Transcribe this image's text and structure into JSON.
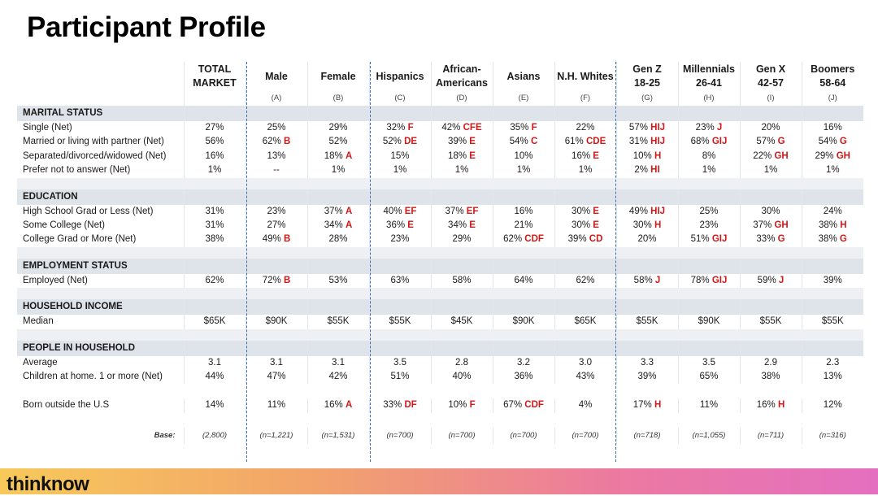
{
  "title": "Participant Profile",
  "columns": [
    {
      "name": "TOTAL\nMARKET",
      "letter": ""
    },
    {
      "name": "Male",
      "letter": "(A)"
    },
    {
      "name": "Female",
      "letter": "(B)"
    },
    {
      "name": "Hispanics",
      "letter": "(C)"
    },
    {
      "name": "African-\nAmericans",
      "letter": "(D)"
    },
    {
      "name": "Asians",
      "letter": "(E)"
    },
    {
      "name": "N.H. Whites",
      "letter": "(F)"
    },
    {
      "name": "Gen Z\n18-25",
      "letter": "(G)"
    },
    {
      "name": "Millennials\n26-41",
      "letter": "(H)"
    },
    {
      "name": "Gen X\n42-57",
      "letter": "(I)"
    },
    {
      "name": "Boomers\n58-64",
      "letter": "(J)"
    }
  ],
  "sections": [
    {
      "title": "MARITAL STATUS",
      "rows": [
        {
          "label": "Single (Net)",
          "cells": [
            [
              "27%",
              ""
            ],
            [
              "25%",
              ""
            ],
            [
              "29%",
              ""
            ],
            [
              "32%",
              "F"
            ],
            [
              "42%",
              "CFE"
            ],
            [
              "35%",
              "F"
            ],
            [
              "22%",
              ""
            ],
            [
              "57%",
              "HIJ"
            ],
            [
              "23%",
              "J"
            ],
            [
              "20%",
              ""
            ],
            [
              "16%",
              ""
            ]
          ]
        },
        {
          "label": "Married or living with partner (Net)",
          "cells": [
            [
              "56%",
              ""
            ],
            [
              "62%",
              "B"
            ],
            [
              "52%",
              ""
            ],
            [
              "52%",
              "DE"
            ],
            [
              "39%",
              "E"
            ],
            [
              "54%",
              "C"
            ],
            [
              "61%",
              "CDE"
            ],
            [
              "31%",
              "HIJ"
            ],
            [
              "68%",
              "GIJ"
            ],
            [
              "57%",
              "G"
            ],
            [
              "54%",
              "G"
            ]
          ]
        },
        {
          "label": "Separated/divorced/widowed (Net)",
          "cells": [
            [
              "16%",
              ""
            ],
            [
              "13%",
              ""
            ],
            [
              "18%",
              "A"
            ],
            [
              "15%",
              ""
            ],
            [
              "18%",
              "E"
            ],
            [
              "10%",
              ""
            ],
            [
              "16%",
              "E"
            ],
            [
              "10%",
              "H"
            ],
            [
              "8%",
              ""
            ],
            [
              "22%",
              "GH"
            ],
            [
              "29%",
              "GH"
            ]
          ]
        },
        {
          "label": "Prefer not to answer (Net)",
          "cells": [
            [
              "1%",
              ""
            ],
            [
              "--",
              ""
            ],
            [
              "1%",
              ""
            ],
            [
              "1%",
              ""
            ],
            [
              "1%",
              ""
            ],
            [
              "1%",
              ""
            ],
            [
              "1%",
              ""
            ],
            [
              "2%",
              "HI"
            ],
            [
              "1%",
              ""
            ],
            [
              "1%",
              ""
            ],
            [
              "1%",
              ""
            ]
          ]
        }
      ]
    },
    {
      "title": "EDUCATION",
      "rows": [
        {
          "label": "High School Grad or Less (Net)",
          "cells": [
            [
              "31%",
              ""
            ],
            [
              "23%",
              ""
            ],
            [
              "37%",
              "A"
            ],
            [
              "40%",
              "EF"
            ],
            [
              "37%",
              "EF"
            ],
            [
              "16%",
              ""
            ],
            [
              "30%",
              "E"
            ],
            [
              "49%",
              "HIJ"
            ],
            [
              "25%",
              ""
            ],
            [
              "30%",
              ""
            ],
            [
              "24%",
              ""
            ]
          ]
        },
        {
          "label": "Some College (Net)",
          "cells": [
            [
              "31%",
              ""
            ],
            [
              "27%",
              ""
            ],
            [
              "34%",
              "A"
            ],
            [
              "36%",
              "E"
            ],
            [
              "34%",
              "E"
            ],
            [
              "21%",
              ""
            ],
            [
              "30%",
              "E"
            ],
            [
              "30%",
              "H"
            ],
            [
              "23%",
              ""
            ],
            [
              "37%",
              "GH"
            ],
            [
              "38%",
              "H"
            ]
          ]
        },
        {
          "label": "College Grad or More (Net)",
          "cells": [
            [
              "38%",
              ""
            ],
            [
              "49%",
              "B"
            ],
            [
              "28%",
              ""
            ],
            [
              "23%",
              ""
            ],
            [
              "29%",
              ""
            ],
            [
              "62%",
              "CDF"
            ],
            [
              "39%",
              "CD"
            ],
            [
              "20%",
              ""
            ],
            [
              "51%",
              "GIJ"
            ],
            [
              "33%",
              "G"
            ],
            [
              "38%",
              "G"
            ]
          ]
        }
      ]
    },
    {
      "title": "EMPLOYMENT STATUS",
      "rows": [
        {
          "label": "Employed (Net)",
          "cells": [
            [
              "62%",
              ""
            ],
            [
              "72%",
              "B"
            ],
            [
              "53%",
              ""
            ],
            [
              "63%",
              ""
            ],
            [
              "58%",
              ""
            ],
            [
              "64%",
              ""
            ],
            [
              "62%",
              ""
            ],
            [
              "58%",
              "J"
            ],
            [
              "78%",
              "GIJ"
            ],
            [
              "59%",
              "J"
            ],
            [
              "39%",
              ""
            ]
          ]
        }
      ]
    },
    {
      "title": "HOUSEHOLD INCOME",
      "rows": [
        {
          "label": "Median",
          "cells": [
            [
              "$65K",
              ""
            ],
            [
              "$90K",
              ""
            ],
            [
              "$55K",
              ""
            ],
            [
              "$55K",
              ""
            ],
            [
              "$45K",
              ""
            ],
            [
              "$90K",
              ""
            ],
            [
              "$65K",
              ""
            ],
            [
              "$55K",
              ""
            ],
            [
              "$90K",
              ""
            ],
            [
              "$55K",
              ""
            ],
            [
              "$55K",
              ""
            ]
          ]
        }
      ]
    },
    {
      "title": "PEOPLE IN HOUSEHOLD",
      "rows": [
        {
          "label": "Average",
          "cells": [
            [
              "3.1",
              ""
            ],
            [
              "3.1",
              ""
            ],
            [
              "3.1",
              ""
            ],
            [
              "3.5",
              ""
            ],
            [
              "2.8",
              ""
            ],
            [
              "3.2",
              ""
            ],
            [
              "3.0",
              ""
            ],
            [
              "3.3",
              ""
            ],
            [
              "3.5",
              ""
            ],
            [
              "2.9",
              ""
            ],
            [
              "2.3",
              ""
            ]
          ]
        },
        {
          "label": "Children at home. 1 or more (Net)",
          "cells": [
            [
              "44%",
              ""
            ],
            [
              "47%",
              ""
            ],
            [
              "42%",
              ""
            ],
            [
              "51%",
              ""
            ],
            [
              "40%",
              ""
            ],
            [
              "36%",
              ""
            ],
            [
              "43%",
              ""
            ],
            [
              "39%",
              ""
            ],
            [
              "65%",
              ""
            ],
            [
              "38%",
              ""
            ],
            [
              "13%",
              ""
            ]
          ]
        }
      ]
    }
  ],
  "born_row": {
    "label": "Born outside the U.S",
    "cells": [
      [
        "14%",
        ""
      ],
      [
        "11%",
        ""
      ],
      [
        "16%",
        "A"
      ],
      [
        "33%",
        "DF"
      ],
      [
        "10%",
        "F"
      ],
      [
        "67%",
        "CDF"
      ],
      [
        "4%",
        ""
      ],
      [
        "17%",
        "H"
      ],
      [
        "11%",
        ""
      ],
      [
        "16%",
        "H"
      ],
      [
        "12%",
        ""
      ]
    ]
  },
  "base_row": {
    "label": "Base:",
    "cells": [
      "(2,800)",
      "(n=1,221)",
      "(n=1,531)",
      "(n=700)",
      "(n=700)",
      "(n=700)",
      "(n=700)",
      "(n=718)",
      "(n=1,055)",
      "(n=711)",
      "(n=316)"
    ]
  },
  "footer": {
    "logo": "thinknow"
  },
  "colors": {
    "sig": "#d01818",
    "section_bg": "#dfe3ea",
    "divider": "#3b6bb0"
  }
}
